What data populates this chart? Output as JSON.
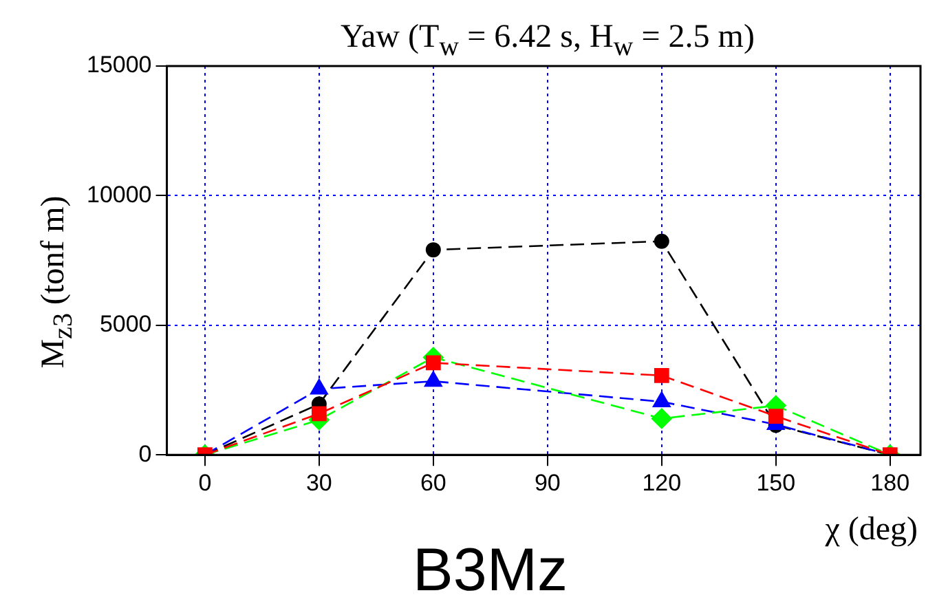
{
  "chart_data": {
    "type": "line",
    "title": "Yaw (T$_{w}$ = 6.42 s, H$_{w}$ = 2.5 m)",
    "xlabel": "χ (deg)",
    "ylabel": "M$_{z3}$ (tonf m)",
    "annotations": [
      "B3Mz"
    ],
    "x": [
      0,
      30,
      60,
      120,
      150,
      180
    ],
    "series": [
      {
        "color": "#000000",
        "marker": "circle",
        "values": [
          0,
          1960,
          7910,
          8240,
          1140,
          0
        ]
      },
      {
        "color": "#0000ff",
        "marker": "triangle",
        "values": [
          0,
          2540,
          2840,
          2050,
          1170,
          0
        ]
      },
      {
        "color": "#00ff00",
        "marker": "diamond",
        "values": [
          0,
          1350,
          3760,
          1400,
          1900,
          0
        ]
      },
      {
        "color": "#ff0000",
        "marker": "square",
        "values": [
          0,
          1590,
          3550,
          3060,
          1490,
          0
        ]
      }
    ],
    "xlim": [
      -10,
      188
    ],
    "xticks": [
      0,
      30,
      60,
      90,
      120,
      150,
      180
    ],
    "ylim": [
      0,
      15000
    ],
    "yticks": [
      0,
      5000,
      10000,
      15000
    ],
    "grid": true,
    "legend": false,
    "line_style": "dashed"
  }
}
